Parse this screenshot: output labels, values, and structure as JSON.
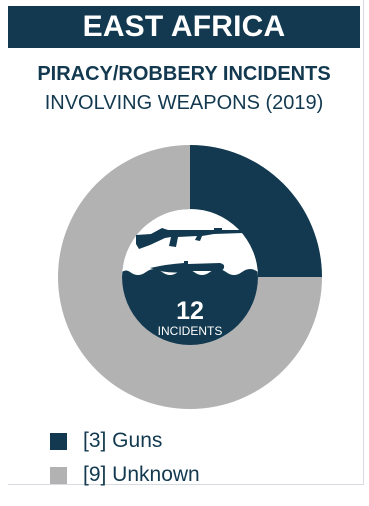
{
  "header": {
    "title": "EAST AFRICA"
  },
  "chart_data": {
    "type": "pie",
    "title": "PIRACY/ROBBERY INCIDENTS",
    "subtitle": "INVOLVING WEAPONS (2019)",
    "categories": [
      "Guns",
      "Unknown"
    ],
    "values": [
      3,
      9
    ],
    "colors": [
      "#12394f",
      "#b2b2b2"
    ],
    "legend_labels": [
      "[3] Guns",
      "[9] Unknown"
    ],
    "center": {
      "total": "12",
      "label": "INCIDENTS"
    },
    "legend_position": "bottom-left"
  }
}
